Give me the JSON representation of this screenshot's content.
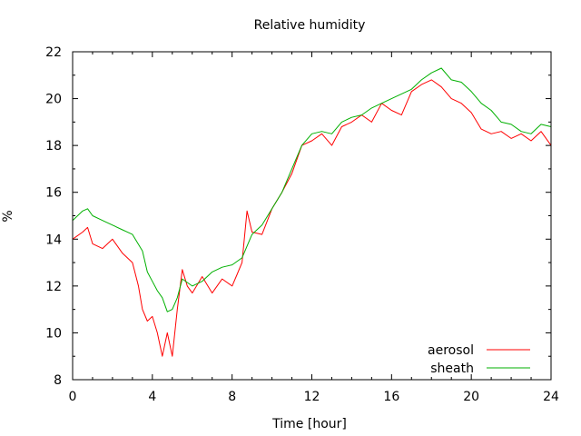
{
  "chart_data": {
    "type": "line",
    "title": "Relative humidity",
    "xlabel": "Time [hour]",
    "ylabel": "%",
    "xlim": [
      0,
      24
    ],
    "ylim": [
      8,
      22
    ],
    "xticks": [
      0,
      4,
      8,
      12,
      16,
      20,
      24
    ],
    "yticks": [
      8,
      10,
      12,
      14,
      16,
      18,
      20,
      22
    ],
    "grid": false,
    "legend_position": "bottom-right",
    "series": [
      {
        "name": "aerosol",
        "color": "#ff0000",
        "points": [
          [
            0,
            14.0
          ],
          [
            0.5,
            14.3
          ],
          [
            0.75,
            14.5
          ],
          [
            1,
            13.8
          ],
          [
            1.5,
            13.6
          ],
          [
            2,
            14.0
          ],
          [
            2.5,
            13.4
          ],
          [
            3,
            13.0
          ],
          [
            3.3,
            12.0
          ],
          [
            3.5,
            11.0
          ],
          [
            3.75,
            10.5
          ],
          [
            4,
            10.7
          ],
          [
            4.25,
            10.0
          ],
          [
            4.5,
            9.0
          ],
          [
            4.75,
            10.0
          ],
          [
            5,
            9.0
          ],
          [
            5.25,
            11.0
          ],
          [
            5.5,
            12.7
          ],
          [
            5.75,
            12.0
          ],
          [
            6,
            11.7
          ],
          [
            6.5,
            12.4
          ],
          [
            7,
            11.7
          ],
          [
            7.5,
            12.3
          ],
          [
            8,
            12.0
          ],
          [
            8.25,
            12.5
          ],
          [
            8.5,
            13.0
          ],
          [
            8.75,
            15.2
          ],
          [
            9,
            14.3
          ],
          [
            9.5,
            14.2
          ],
          [
            10,
            15.3
          ],
          [
            10.5,
            16.0
          ],
          [
            11,
            16.8
          ],
          [
            11.5,
            18.0
          ],
          [
            12,
            18.2
          ],
          [
            12.5,
            18.5
          ],
          [
            13,
            18.0
          ],
          [
            13.5,
            18.8
          ],
          [
            14,
            19.0
          ],
          [
            14.5,
            19.3
          ],
          [
            15,
            19.0
          ],
          [
            15.5,
            19.8
          ],
          [
            16,
            19.5
          ],
          [
            16.5,
            19.3
          ],
          [
            17,
            20.3
          ],
          [
            17.5,
            20.6
          ],
          [
            18,
            20.8
          ],
          [
            18.5,
            20.5
          ],
          [
            19,
            20.0
          ],
          [
            19.5,
            19.8
          ],
          [
            20,
            19.4
          ],
          [
            20.5,
            18.7
          ],
          [
            21,
            18.5
          ],
          [
            21.5,
            18.6
          ],
          [
            22,
            18.3
          ],
          [
            22.5,
            18.5
          ],
          [
            23,
            18.2
          ],
          [
            23.5,
            18.6
          ],
          [
            24,
            18.0
          ]
        ]
      },
      {
        "name": "sheath",
        "color": "#00b000",
        "points": [
          [
            0,
            14.8
          ],
          [
            0.5,
            15.2
          ],
          [
            0.75,
            15.3
          ],
          [
            1,
            15.0
          ],
          [
            1.5,
            14.8
          ],
          [
            2,
            14.6
          ],
          [
            2.5,
            14.4
          ],
          [
            3,
            14.2
          ],
          [
            3.5,
            13.5
          ],
          [
            3.75,
            12.6
          ],
          [
            4,
            12.2
          ],
          [
            4.25,
            11.8
          ],
          [
            4.5,
            11.5
          ],
          [
            4.75,
            10.9
          ],
          [
            5,
            11.0
          ],
          [
            5.25,
            11.5
          ],
          [
            5.5,
            12.3
          ],
          [
            6,
            12.0
          ],
          [
            6.5,
            12.2
          ],
          [
            7,
            12.6
          ],
          [
            7.5,
            12.8
          ],
          [
            8,
            12.9
          ],
          [
            8.5,
            13.2
          ],
          [
            9,
            14.2
          ],
          [
            9.5,
            14.6
          ],
          [
            10,
            15.3
          ],
          [
            10.5,
            16.0
          ],
          [
            11,
            17.0
          ],
          [
            11.5,
            18.0
          ],
          [
            12,
            18.5
          ],
          [
            12.5,
            18.6
          ],
          [
            13,
            18.5
          ],
          [
            13.5,
            19.0
          ],
          [
            14,
            19.2
          ],
          [
            14.5,
            19.3
          ],
          [
            15,
            19.6
          ],
          [
            15.5,
            19.8
          ],
          [
            16,
            20.0
          ],
          [
            16.5,
            20.2
          ],
          [
            17,
            20.4
          ],
          [
            17.5,
            20.8
          ],
          [
            18,
            21.1
          ],
          [
            18.5,
            21.3
          ],
          [
            19,
            20.8
          ],
          [
            19.5,
            20.7
          ],
          [
            20,
            20.3
          ],
          [
            20.5,
            19.8
          ],
          [
            21,
            19.5
          ],
          [
            21.5,
            19.0
          ],
          [
            22,
            18.9
          ],
          [
            22.5,
            18.6
          ],
          [
            23,
            18.5
          ],
          [
            23.5,
            18.9
          ],
          [
            24,
            18.8
          ]
        ]
      }
    ]
  }
}
